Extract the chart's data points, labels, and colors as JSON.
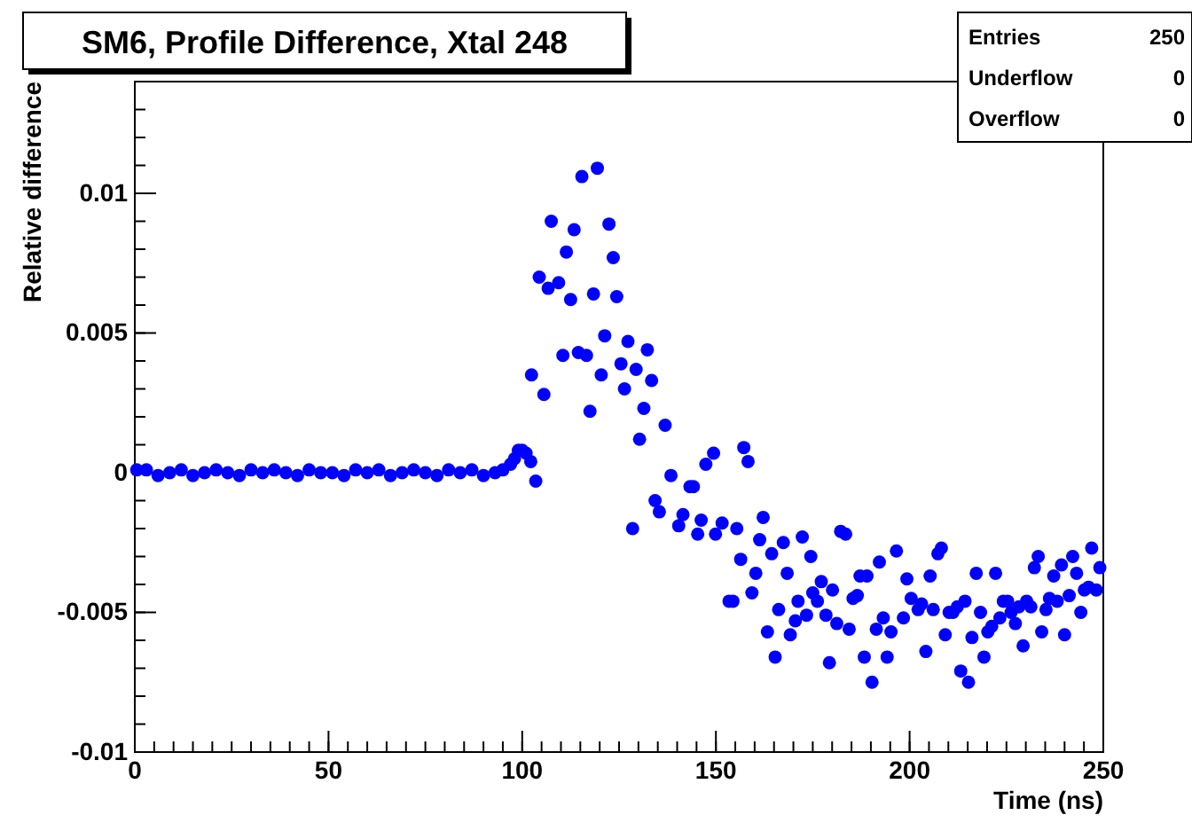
{
  "chart_data": {
    "type": "scatter",
    "title": "SM6, Profile Difference, Xtal 248",
    "xlabel": "Time (ns)",
    "ylabel": "Relative difference",
    "annotations": [
      "Entries",
      "250",
      "Underflow",
      "0",
      "Overflow",
      "0"
    ],
    "xlim": [
      0,
      250
    ],
    "xticks": [
      0,
      50,
      100,
      150,
      200,
      250
    ],
    "ylim": [
      -0.01,
      0.014
    ],
    "yticks": [
      -0.01,
      -0.005,
      0,
      0.005,
      0.01
    ],
    "marker": "circle",
    "grid": false,
    "series": [
      {
        "color": "#0000ff",
        "x": [
          0.5,
          3,
          6,
          9,
          12,
          15,
          18,
          21,
          24,
          27,
          30,
          33,
          36,
          39,
          42,
          45,
          48,
          51,
          54,
          57,
          60,
          63,
          66,
          69,
          72,
          75,
          78,
          81,
          84,
          87,
          90,
          93,
          95,
          97,
          98,
          99,
          100,
          101,
          102.2,
          103.5,
          102.4,
          104.4,
          105.6,
          106.7,
          107.5,
          109.4,
          110.5,
          111.4,
          112.5,
          113.4,
          114.5,
          115.4,
          116.6,
          117.5,
          118.4,
          119.4,
          120.4,
          121.3,
          122.4,
          123.5,
          124.4,
          125.5,
          126.4,
          127.3,
          128.5,
          129.4,
          130.3,
          131.4,
          132.3,
          133.4,
          134.3,
          135.4,
          136.9,
          138.4,
          140.4,
          141.5,
          143.3,
          144.2,
          145.3,
          146.2,
          147.4,
          149.4,
          149.9,
          151.6,
          153.4,
          154.4,
          155.4,
          156.4,
          157.2,
          158.3,
          159.3,
          160.3,
          161.3,
          162.2,
          163.3,
          164.4,
          165.3,
          166.2,
          167.4,
          168.4,
          169.2,
          170.5,
          171.2,
          172.3,
          173.4,
          174.5,
          175.0,
          176.2,
          177.2,
          178.4,
          179.3,
          180.1,
          181.2,
          182.2,
          183.5,
          184.4,
          185.4,
          186.5,
          187.2,
          188.3,
          189.0,
          190.3,
          191.4,
          192.2,
          193.2,
          194.2,
          195.2,
          196.6,
          198.4,
          199.3,
          200.4,
          202.2,
          203.1,
          204.2,
          205.3,
          206.1,
          207.3,
          208.2,
          209.2,
          210.2,
          211.2,
          212.3,
          213.2,
          214.3,
          215.2,
          216.1,
          217.2,
          218.3,
          219.2,
          220.2,
          221.2,
          222.2,
          223.3,
          224.2,
          225.3,
          226.2,
          227.3,
          228.2,
          229.3,
          230.2,
          231.3,
          232.2,
          233.2,
          234.1,
          235.2,
          236.1,
          237.2,
          238.1,
          239.2,
          240.0,
          241.2,
          242.1,
          243.1,
          244.2,
          245.1,
          246.2,
          247.0,
          248.2,
          249.1
        ],
        "values": [
          0.0001,
          0.0001,
          -0.0001,
          0.0,
          0.0001,
          -0.0001,
          0.0,
          0.0001,
          0.0,
          -0.0001,
          0.0001,
          0.0,
          0.0001,
          0.0,
          -0.0001,
          0.0001,
          0.0,
          0.0,
          -0.0001,
          0.0001,
          0.0,
          0.0001,
          -0.0001,
          0.0,
          0.0001,
          0.0,
          -0.0001,
          0.0001,
          0.0,
          0.0001,
          -0.0001,
          0.0,
          0.0001,
          0.0003,
          0.0005,
          0.0008,
          0.0008,
          0.0007,
          0.0004,
          -0.0003,
          0.0035,
          0.007,
          0.0028,
          0.0066,
          0.009,
          0.0068,
          0.0042,
          0.0079,
          0.0062,
          0.0087,
          0.0043,
          0.0106,
          0.0042,
          0.0022,
          0.0064,
          0.0109,
          0.0035,
          0.0049,
          0.0089,
          0.0077,
          0.0063,
          0.0039,
          0.003,
          0.0047,
          -0.002,
          0.0037,
          0.0012,
          0.0023,
          0.0044,
          0.0033,
          -0.001,
          -0.0014,
          0.0017,
          -0.0001,
          -0.0019,
          -0.0015,
          -0.0005,
          -0.0005,
          -0.0022,
          -0.0017,
          0.0003,
          0.0007,
          -0.0022,
          -0.0018,
          -0.0046,
          -0.0046,
          -0.002,
          -0.0031,
          0.0009,
          0.0004,
          -0.0043,
          -0.0036,
          -0.0024,
          -0.0016,
          -0.0057,
          -0.0029,
          -0.0066,
          -0.0049,
          -0.0025,
          -0.0036,
          -0.0058,
          -0.0053,
          -0.0046,
          -0.0023,
          -0.0051,
          -0.003,
          -0.0043,
          -0.0046,
          -0.0039,
          -0.0051,
          -0.0068,
          -0.0042,
          -0.0054,
          -0.0021,
          -0.0022,
          -0.0056,
          -0.0045,
          -0.0044,
          -0.0037,
          -0.0066,
          -0.0037,
          -0.0075,
          -0.0056,
          -0.0032,
          -0.0052,
          -0.0066,
          -0.0057,
          -0.0028,
          -0.0052,
          -0.0038,
          -0.0045,
          -0.0049,
          -0.0047,
          -0.0064,
          -0.0037,
          -0.0049,
          -0.0029,
          -0.0027,
          -0.0058,
          -0.005,
          -0.005,
          -0.0048,
          -0.0071,
          -0.0046,
          -0.0075,
          -0.0059,
          -0.0036,
          -0.005,
          -0.0066,
          -0.0057,
          -0.0055,
          -0.0036,
          -0.0052,
          -0.0046,
          -0.0046,
          -0.005,
          -0.0054,
          -0.0048,
          -0.0062,
          -0.0046,
          -0.0048,
          -0.0034,
          -0.003,
          -0.0057,
          -0.0049,
          -0.0045,
          -0.0037,
          -0.0046,
          -0.0033,
          -0.0058,
          -0.0044,
          -0.003,
          -0.0036,
          -0.005,
          -0.0042,
          -0.0041,
          -0.0027,
          -0.0042,
          -0.0034
        ]
      }
    ]
  }
}
